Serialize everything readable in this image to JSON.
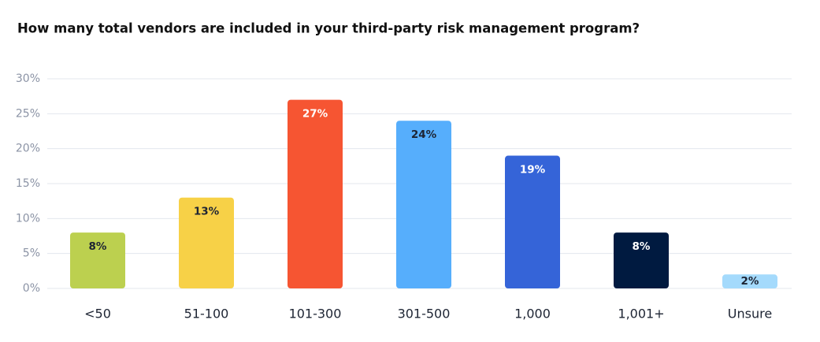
{
  "chart_data": {
    "type": "bar",
    "title": "How many total vendors are included in your third-party risk management program?",
    "categories": [
      "<50",
      "51-100",
      "101-300",
      "301-500",
      "1,000",
      "1,001+",
      "Unsure"
    ],
    "series": [
      {
        "values": [
          8,
          13,
          27,
          24,
          19,
          8,
          2
        ],
        "value_labels": [
          "8%",
          "13%",
          "27%",
          "24%",
          "19%",
          "8%",
          "2%"
        ],
        "colors": [
          "#bcd04f",
          "#f7d147",
          "#f65532",
          "#56aefc",
          "#3564d8",
          "#001a40",
          "#a4dafc"
        ]
      }
    ],
    "ylim": [
      0,
      30
    ],
    "yticks": [
      {
        "value": 0,
        "label": "0%"
      },
      {
        "value": 5,
        "label": "5%"
      },
      {
        "value": 10,
        "label": "10%"
      },
      {
        "value": 15,
        "label": "15%"
      },
      {
        "value": 20,
        "label": "20%"
      },
      {
        "value": 25,
        "label": "25%"
      },
      {
        "value": 30,
        "label": "30%"
      }
    ],
    "grid": true
  }
}
